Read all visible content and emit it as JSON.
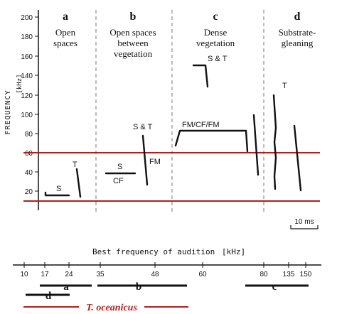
{
  "diagram": {
    "y_axis": {
      "label": "FREQUENCY",
      "unit": "[kHz]",
      "ticks": [
        "20",
        "40",
        "60",
        "80",
        "100",
        "120",
        "140",
        "160",
        "180",
        "200"
      ]
    },
    "panels": [
      {
        "letter": "a",
        "lines": [
          "Open",
          "spaces"
        ]
      },
      {
        "letter": "b",
        "lines": [
          "Open spaces",
          "between",
          "vegetation"
        ]
      },
      {
        "letter": "c",
        "lines": [
          "Dense",
          "vegetation"
        ]
      },
      {
        "letter": "d",
        "lines": [
          "Substrate-",
          "gleaning"
        ]
      }
    ],
    "call_labels": {
      "a_s": "S",
      "a_t": "T",
      "b_s": "S",
      "b_cf": "CF",
      "b_st": "S & T",
      "b_fm": "FM",
      "c_st": "S & T",
      "c_fmcffm": "FM/CF/FM",
      "d_t": "T"
    },
    "reference_lines_khz": [
      60,
      10
    ],
    "scale_bar": "10 ms"
  },
  "audition": {
    "title": "Best frequency of audition",
    "unit": "[kHz]",
    "ticks": [
      "10",
      "17",
      "24",
      "35",
      "48",
      "60",
      "80",
      "135",
      "150"
    ],
    "ranges": [
      {
        "label": "a"
      },
      {
        "label": "b"
      },
      {
        "label": "c"
      },
      {
        "label": "d"
      }
    ],
    "species": "T. oceanicus",
    "colors": {
      "reference": "#b21e1e",
      "ink": "#111111"
    }
  }
}
